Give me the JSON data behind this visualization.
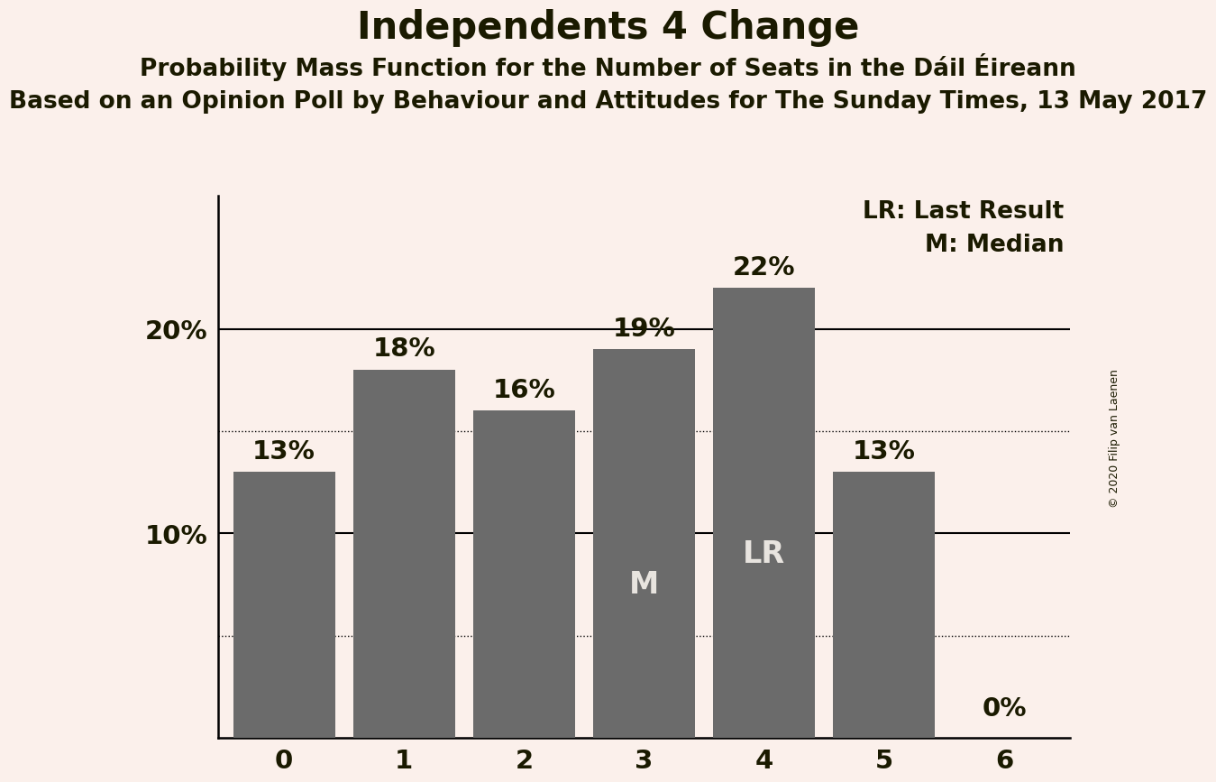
{
  "title": "Independents 4 Change",
  "subtitle1": "Probability Mass Function for the Number of Seats in the Dáil Éireann",
  "subtitle2": "Based on an Opinion Poll by Behaviour and Attitudes for The Sunday Times, 13 May 2017",
  "copyright": "© 2020 Filip van Laenen",
  "categories": [
    0,
    1,
    2,
    3,
    4,
    5,
    6
  ],
  "values": [
    0.13,
    0.18,
    0.16,
    0.19,
    0.22,
    0.13,
    0.0
  ],
  "bar_color": "#6B6B6B",
  "background_color": "#FBF0EB",
  "label_color": "#1a1a00",
  "bar_label_color_outside": "#1a1a00",
  "bar_label_color_inside": "#E8E4DF",
  "median_bar": 3,
  "lr_bar": 4,
  "yticks": [
    0.1,
    0.2
  ],
  "ylim": [
    0,
    0.265
  ],
  "solid_gridlines": [
    0.1,
    0.2
  ],
  "dotted_gridlines": [
    0.15,
    0.05
  ],
  "legend_text1": "LR: Last Result",
  "legend_text2": "M: Median",
  "title_fontsize": 30,
  "subtitle1_fontsize": 19,
  "subtitle2_fontsize": 19,
  "bar_label_fontsize": 21,
  "axis_tick_fontsize": 21,
  "legend_fontsize": 19,
  "inside_label_fontsize": 24
}
